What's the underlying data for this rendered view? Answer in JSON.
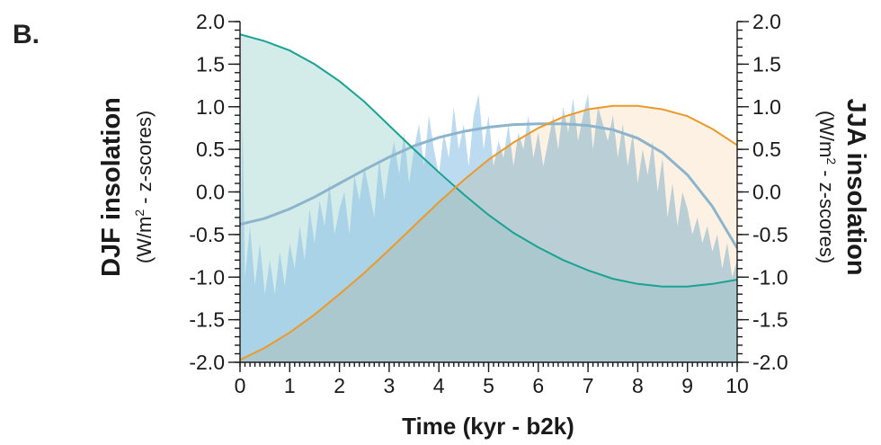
{
  "panel_label": "B.",
  "chart_data": {
    "type": "area",
    "xlabel": "Time (kyr - b2k)",
    "ylabel_left": {
      "main": "DJF insolation",
      "sub_prefix": "(W/m",
      "sub_sup": "2",
      "sub_suffix": " - z-scores)"
    },
    "ylabel_right": {
      "main": "JJA insolation",
      "sub_prefix": "(W/m",
      "sub_sup": "2",
      "sub_suffix": " - z-scores)"
    },
    "xlim": [
      0,
      10
    ],
    "ylim": [
      -2,
      2
    ],
    "x_ticks": [
      "0",
      "1",
      "2",
      "3",
      "4",
      "5",
      "6",
      "7",
      "8",
      "9",
      "10"
    ],
    "y_ticks": [
      "-2.0",
      "-1.5",
      "-1.0",
      "-0.5",
      "0.0",
      "0.5",
      "1.0",
      "1.5",
      "2.0"
    ],
    "colors": {
      "djf_line": "#1aa293",
      "djf_fill": "#cfeae7",
      "jja_line": "#eb9a2a",
      "jja_fill": "#fce6cc",
      "proxy_fill": "#8fc3e6",
      "proxy_smooth": "#8cb4cc"
    },
    "series": [
      {
        "key": "djf",
        "x": [
          0,
          0.5,
          1,
          1.5,
          2,
          2.5,
          3,
          3.5,
          4,
          4.5,
          5,
          5.5,
          6,
          6.5,
          7,
          7.5,
          8,
          8.5,
          9,
          9.5,
          10
        ],
        "values": [
          1.85,
          1.77,
          1.66,
          1.5,
          1.3,
          1.06,
          0.78,
          0.5,
          0.23,
          -0.03,
          -0.27,
          -0.48,
          -0.65,
          -0.8,
          -0.92,
          -1.02,
          -1.08,
          -1.11,
          -1.11,
          -1.08,
          -1.03
        ]
      },
      {
        "key": "jja",
        "x": [
          0,
          0.5,
          1,
          1.5,
          2,
          2.5,
          3,
          3.5,
          4,
          4.5,
          5,
          5.5,
          6,
          6.5,
          7,
          7.5,
          8,
          8.5,
          9,
          9.5,
          10
        ],
        "values": [
          -1.97,
          -1.83,
          -1.65,
          -1.44,
          -1.2,
          -0.95,
          -0.68,
          -0.4,
          -0.12,
          0.14,
          0.38,
          0.58,
          0.75,
          0.88,
          0.97,
          1.01,
          1.01,
          0.97,
          0.89,
          0.74,
          0.55
        ]
      },
      {
        "key": "proxy",
        "x": [
          0,
          0.05,
          0.1,
          0.2,
          0.3,
          0.4,
          0.5,
          0.6,
          0.7,
          0.8,
          0.9,
          1,
          1.1,
          1.2,
          1.3,
          1.4,
          1.5,
          1.6,
          1.7,
          1.8,
          1.9,
          2,
          2.1,
          2.2,
          2.3,
          2.4,
          2.5,
          2.6,
          2.7,
          2.8,
          2.9,
          3,
          3.1,
          3.2,
          3.3,
          3.4,
          3.5,
          3.6,
          3.7,
          3.8,
          3.9,
          4,
          4.1,
          4.2,
          4.3,
          4.4,
          4.5,
          4.6,
          4.7,
          4.8,
          4.9,
          5,
          5.1,
          5.2,
          5.3,
          5.4,
          5.5,
          5.6,
          5.7,
          5.8,
          5.9,
          6,
          6.1,
          6.2,
          6.3,
          6.4,
          6.5,
          6.6,
          6.7,
          6.8,
          6.9,
          7,
          7.1,
          7.2,
          7.3,
          7.4,
          7.5,
          7.6,
          7.7,
          7.8,
          7.9,
          8,
          8.1,
          8.2,
          8.3,
          8.4,
          8.5,
          8.6,
          8.7,
          8.8,
          8.9,
          9,
          9.1,
          9.2,
          9.3,
          9.4,
          9.5,
          9.6,
          9.7,
          9.8,
          9.9,
          10
        ],
        "values": [
          -1.5,
          0.9,
          -1.0,
          -0.4,
          -1.1,
          -0.6,
          -1.2,
          -0.8,
          -1.2,
          -0.7,
          -1.1,
          -0.6,
          -0.9,
          -0.4,
          -0.8,
          -0.2,
          -0.6,
          -0.1,
          -0.4,
          0.1,
          -0.5,
          -0.2,
          0.0,
          -0.5,
          0.2,
          -0.1,
          0.3,
          0.0,
          -0.3,
          0.4,
          -0.1,
          0.3,
          0.6,
          0.2,
          0.7,
          0.1,
          0.5,
          0.8,
          0.3,
          0.9,
          0.5,
          0.2,
          0.7,
          0.4,
          1.0,
          0.5,
          0.8,
          0.3,
          0.9,
          1.15,
          0.5,
          0.9,
          0.3,
          0.6,
          0.4,
          0.8,
          0.3,
          0.7,
          0.5,
          0.9,
          0.4,
          0.7,
          0.3,
          0.6,
          0.9,
          0.5,
          1.0,
          0.7,
          1.1,
          0.6,
          0.9,
          1.15,
          0.5,
          1.0,
          0.8,
          0.6,
          0.9,
          0.4,
          0.8,
          0.3,
          0.7,
          0.1,
          0.5,
          0.2,
          0.6,
          0.0,
          0.4,
          -0.3,
          0.1,
          -0.4,
          0.0,
          -0.2,
          -0.5,
          -0.3,
          -0.6,
          -0.4,
          -0.7,
          -0.5,
          -0.9,
          -0.6,
          -1.0,
          -0.8
        ]
      },
      {
        "key": "proxy_smooth",
        "x": [
          0,
          0.5,
          1,
          1.5,
          2,
          2.5,
          3,
          3.5,
          4,
          4.5,
          5,
          5.5,
          6,
          6.5,
          7,
          7.5,
          8,
          8.5,
          9,
          9.5,
          10
        ],
        "values": [
          -0.38,
          -0.31,
          -0.2,
          -0.06,
          0.1,
          0.26,
          0.41,
          0.54,
          0.64,
          0.71,
          0.76,
          0.79,
          0.8,
          0.8,
          0.78,
          0.73,
          0.63,
          0.46,
          0.2,
          -0.17,
          -0.66
        ]
      }
    ]
  }
}
